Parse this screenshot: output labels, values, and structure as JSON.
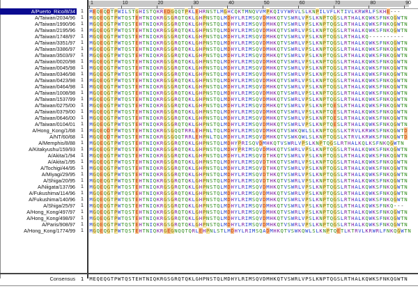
{
  "ruler": {
    "start_label": "1",
    "ticks": [
      "1",
      "10",
      "20",
      "30",
      "40",
      "50",
      "60",
      "70",
      "80",
      "90"
    ]
  },
  "colors": {
    "selected_row_bg": "#0a0a90",
    "residue": {
      "hydrophobic": "#1f3fd0",
      "polar": "#2e8b1a",
      "acidic": "#c43a00",
      "basic": "#7a1aa0",
      "highlight_yellow": "#f4e29a",
      "highlight_green": "#9fe0a0",
      "highlight_orange": "#f7c08a",
      "highlight_purple": "#d7b7f0",
      "highlight_blue": "#b6d2ff"
    }
  },
  "sequences": [
    {
      "name": "A/Puerto_Rico/8/34",
      "num": "1",
      "seq": "MEQEQDTPWILSTGHISTQKREDGQQTPKLEHRNSTLMGHCQKTMNQVVMPKQIVYWRVLSLKNPILVFLKTIVLKRWRLFSKHE---"
    },
    {
      "name": "A/Taiwan/2034/96",
      "num": "1",
      "seq": "MGQEQGTPWTQSTEHTNIQKRGSGRQTQKLGHPNSTQLMDHYLRIMSQVDMHKQTVSWRLVPSLKNPTQGSLRTHALKQWKSFNKQGWTN"
    },
    {
      "name": "A/Taiwan/1990/96",
      "num": "1",
      "seq": "MGQEQGTPWTQSTEHTNIQKRGSGRQTQKLGHPNSTQLMDHYLRIMSQVDMHKQTVSWRLVPSLKNPTQGSLRTHALKQWKSFNKQGWTN"
    },
    {
      "name": "A/Taiwan/2195/96",
      "num": "1",
      "seq": "MGQEQGTPWTQSTEHTNIQKRGSGRQTQKLGHPNSTQLMDHYLRIMSQVDMHKQTVSWRLVPSLKNPTQGSLRTHALKQWKSFNKQGWTN"
    },
    {
      "name": "A/Taiwan/1748/97",
      "num": "1",
      "seq": "MGQEQGTPWTQSTEHTNIQKRGSGRQTQKLGHPNSTQLMDHYLRIMSQVDMHKQTVSWRLVPSLKNPTQGSLRTHALKQ----------"
    },
    {
      "name": "A/Taiwan/3351/97",
      "num": "1",
      "seq": "MGQEQGTPWTQSTEHTNIQKRGSGRQTQKLGHPNSTQLMDHYLRIMSQVDMHKQTVSWRLVPSLKNPTQGSLRTHALKQWKSFNKQGWTN"
    },
    {
      "name": "A/Taiwan/3386/97",
      "num": "1",
      "seq": "MGQEQGTPWTQSTEHTNIQKRGSGRQTQKLGHPNSTQLMDHYLRIMSQVDMHKQTVSWRLVPSLKNPTQGSLRTHALKQWKSFNKQGWTN"
    },
    {
      "name": "A/Taiwan/3503/97",
      "num": "1",
      "seq": "MGQEQGTPWTQSTEHTNIQKRGSGRQTQKLGHPNSTQLMDHYLRIMSQVDMHKQTVSWRLVPSLKNPTQGSLRTHALKQWKSFNKQGWTN"
    },
    {
      "name": "A/Taiwan/0020/98",
      "num": "1",
      "seq": "MGQEQGTPWTQSTEHTNIQKRGSGRQTQKLGHPNSTQLMDHYLRIMSQVDMHKQTVSWRLVPSLKNPTQGSLRTHALKQWKSFNKQGWTN"
    },
    {
      "name": "A/Taiwan/0045/98",
      "num": "1",
      "seq": "MGQEQGTPWTQSTEHTNIQKRGSGRQTQKLGHPNSTQLMDHYLRIMSQVDMHKQTVSWRLVPSLKNPTQGSLRTHALKQWKSFNKQGWTN"
    },
    {
      "name": "A/Taiwan/0346/98",
      "num": "1",
      "seq": "MGQEQGTPWTQSTEHTNIQKRGSGRQTQKLGHPNSTQLMDHYLRIMSQVDMHKQTVSWRLVPSLKNPTQGSLRTHALKQWKSFNKQGWTN"
    },
    {
      "name": "A/Taiwan/0423/98",
      "num": "1",
      "seq": "MGQEQGTPWTQSTEHTNIQKRGSGRQTQKLGHPNSTQLMDHYLRIMSQVDMHKQTVSWRLVPSLKNPTQGSLRTHALKQWKSFNKQGWTN"
    },
    {
      "name": "A/Taiwan/0464/98",
      "num": "1",
      "seq": "MGQEQGTPWTQSTEHTNIQKRGSGRQTQKLGHPNSTQLMDHYLRIMSQVDMHKQTVSWRLVPSLKNPTQGSLRTHALKQWKSFNKQGWTN"
    },
    {
      "name": "A/Taiwan/1008/98",
      "num": "1",
      "seq": "MGQEQGTPWTQSTEHTNIQKRGSGRQTQKLGHPNSTQLMDHYLRIMSQVDMHKQTVSWRLVPSLKNPTQGSLRTHALKQWKSFNKQGWTN"
    },
    {
      "name": "A/Taiwan/1537/99",
      "num": "1",
      "seq": "MGQEQGTPWTQSTEHTNIQKRGSGRQTQKLGHPNSTQLMDHYLRIMSQVDMHKQTVSWRLVPSLKNPTQGSLRTHALKQWKSFNKQGWTN"
    },
    {
      "name": "A/Taiwan/0275/00",
      "num": "1",
      "seq": "MGQEQGTPWTQSTEHTNIQKRGSGRQTQKLGHPNSTQLMDHYLRIMSQVDMHKQTVSWRLVPSLKNPTQESLRTHALKQWKSFNKQGWTN"
    },
    {
      "name": "A/Taiwan/0379/00",
      "num": "1",
      "seq": "MGQEQGTPWTQSTEHTNIQKRGSGRQTQKLGHPNSTQLMDHYLRIMSQVDMHKQTVSWRLVPSLKNPTQESLRTHALKQWKSFNKQGWTN"
    },
    {
      "name": "A/Taiwan/0646/00",
      "num": "1",
      "seq": "MGQEQGTPWTQSTEHTNIQKRGSGRQTQKLGHPNSTQLMDHYLRIMSQVDMHKQTVSWRLVPSLKNPTQESLRTHALKQWKSFNKQGWTN"
    },
    {
      "name": "A/Taiwan/0104/01",
      "num": "1",
      "seq": "MGQEQGTPWTQSTEHTNIQKRGSGRQTQKLGHPNSTQLMDHYLRIMSQVDMHKQTVSWRLVPSLKNPTQESLRTHALKQWKSFNKQGWTN"
    },
    {
      "name": "A/Hong_Kong/1/68",
      "num": "1",
      "seq": "MGQEQDTPWTQSTEHTNIQKRGSGQQTRRLEHPNLTQLMDHYLRIMSQVDMHKQTVSWKQWLSLKNPTQGSLKTRVLKRWKSFNKQGWTD"
    },
    {
      "name": "A/NT/60/68",
      "num": "1",
      "seq": "MGQEQDTPWTQSTEHTNIQKRGSGQQTRRLEHPNLTQLMDHYLRIMSQVDMHKQTVSWKQWLSLKNPTQGSLKTRVLKRWKSFNKQGWTD"
    },
    {
      "name": "A/Memphis/8/88",
      "num": "1",
      "seq": "MGQEQGTPWTQSTEHTNIQKRGSGRQTQKLGHPNSTQLMDHYPRISQVDMHKQTVSWRLVPSLKNPTQGSLRTHALKQLKSFNKQGWTN"
    },
    {
      "name": "A/Kitakyushu/159/93",
      "num": "1",
      "seq": "MGQEQGTPWTQSTEHTNIQKRGSGRQTQKLGHPNSTQLMDHYPRIMSQVDMHKQTVSWRLVPSLKNPTQGSLRTHALKQWKSFNKQGWTN"
    },
    {
      "name": "A/Akita/1/94",
      "num": "1",
      "seq": "MGQEQGTPWTQSTEHTNIQKRGSGRQTQKLGHPNSTQLMDHYLRIMSQVDTHKQTVSWRLVPSLKNPTQGSLRTHALKQWKSFNKQGWTN"
    },
    {
      "name": "A/Akita/1/95",
      "num": "1",
      "seq": "MGQEQGTPWTQSTEHTNIQKRGSGRQTQKLGHPNSTQLMDHYLRIMSQVDTHKQTVSWRLVPSLKNPTQGSLRTHALKQWKSFNKQGWTN"
    },
    {
      "name": "A/Tochigi/44/95",
      "num": "1",
      "seq": "MGQEQGTPWTQSTEHTNIQKRGSGRQTQKLGHPNSTQLMDHYLRIMSQVDTHKQTVSWRLVPSLKNPTQGSLRTHALKQWKSFNKQGWTN"
    },
    {
      "name": "A/Miyagi/29/95",
      "num": "1",
      "seq": "MGQEQGTPWTQSTEHTNIQKRGSGRQTQKLGHPNSTQLMDHYLRIMSQVDTHKQTVSWRLVPSLKNPTQGSLRTHALKQWKSFNKQGWTN"
    },
    {
      "name": "A/Shiga/20/95",
      "num": "1",
      "seq": "MGQEQGTPWTQSTEHTNIQKRGSGRQTQKLGHPNSTQLMDHYLRIMSQVDTHKQTVSWRLVPSLKNPTQGSLRTHALKQWKSFNKQGWTN"
    },
    {
      "name": "A/Niigata/137/96",
      "num": "1",
      "seq": "MGQEQGTPWTQSTEHTNIQKRGSGRQTQKLGHPNSTQLMDHYLRIMSQVDMHKQTVSWRLVPSLKNPTQGSLRTHALKQWKSFNKQGWTN"
    },
    {
      "name": "A/Fukushima/114/96",
      "num": "1",
      "seq": "MGQEQGTPWTQSTEHTNIQKRGSGRQTQKLGHPNSTQLMDHYLRIMSQVDMHKQTVSWRLVPSLKNPTQGSLRTHALKQWKSFNKQGWTN"
    },
    {
      "name": "A/Fukushima/140/96",
      "num": "1",
      "seq": "MGQEQGTPWTQSTEHTNIQKRGSGRQTQKLGHPNSTQLMDHYLRIMSQVDMHKQTVSWRLVPSLKNPTQGSLRTHALKQWKSFNKQGWTN"
    },
    {
      "name": "A/Shiga/25/97",
      "num": "1",
      "seq": "MGQEQGTPWTQSTEHTNIQKRGSGRQTQKLGHPNSTQLMDHYLRIMSQVDMHKQTVSWRLVPSLKNPTQGSLRTHALKQWKSFNKQ---"
    },
    {
      "name": "A/Hong_Kong/497/97",
      "num": "1",
      "seq": "MGQEQGTPWTQSTEHTNIQKRGSGRQTQKLGHPNSTQLMDHYLRIMSQVDMHKQTVSWRLVPSLKNPTQGSLRTHALKQWKSFNKQGWTN"
    },
    {
      "name": "A/Hong_Kong/498/97",
      "num": "1",
      "seq": "MGQEQGTPWTQSTEHTNIQKRGSGRQTQKLGHPNSTQLMDHYLRIMSQVDMHKQTVSWRLVPSLKNPTQGSLRTHALKQWKSFNKQGWTN"
    },
    {
      "name": "A/Paris/908/97",
      "num": "1",
      "seq": "MGQEQGTPWTQSTEHTNIQKRGSGRQTQKLGHPNSTQLMDHYLRIMSQVDMHKQTVSWRLVPSLKNPTQGSLRTHALKQWKSFNKQGWTN"
    },
    {
      "name": "A/Hong_Kong/1774/99",
      "num": "1",
      "seq": "MGQEQGTPWTQSTEHTNIQKRGEGNQQTQRLEHPNLSTLMDHYLRIMSQADMHKQTVSWKQWLSLKNPTQETLKTRVLKRWRLFNKQGWTN"
    }
  ],
  "consensus": {
    "label": "Consensus",
    "num": "1",
    "seq": "MEQEQGTPWTQSTEHTNIQKRGSGRQTQKLGHPNSTQLMDHYLRIMSQVDMHKQTVSWRLVPSLKNPTQGSLRTHALKQWKSFNKQGWTN"
  }
}
